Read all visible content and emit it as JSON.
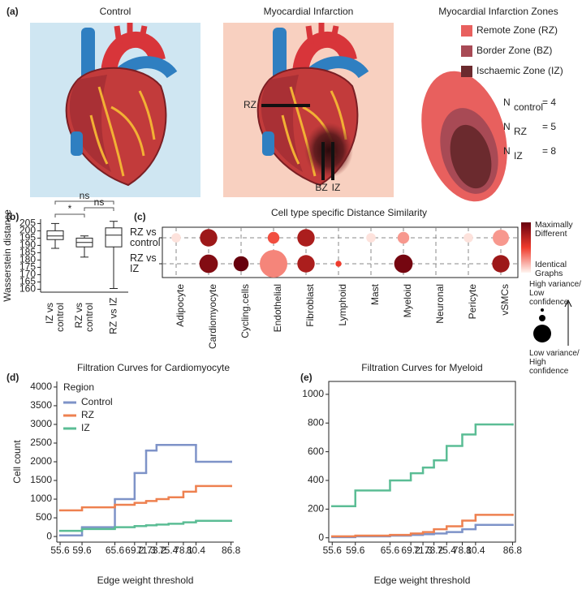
{
  "illustration": {
    "panel": "(a)",
    "control_title": "Control",
    "mi_title": "Myocardial Infarction",
    "mi_labels": [
      "RZ",
      "BZ",
      "IZ"
    ],
    "zones_title": "Myocardial Infarction Zones",
    "zones": [
      {
        "name": "Remote Zone (RZ)",
        "color": "#e8605e"
      },
      {
        "name": "Border Zone (BZ)",
        "color": "#a84a55"
      },
      {
        "name": "Ischaemic Zone (IZ)",
        "color": "#6b2a2e"
      }
    ],
    "counts": [
      {
        "symbol": "N",
        "subscript": "control",
        "text": "= 4"
      },
      {
        "symbol": "N",
        "subscript": "RZ",
        "text": "= 5"
      },
      {
        "symbol": "N",
        "subscript": "IZ",
        "text": "= 8"
      }
    ]
  },
  "chart_data": [
    {
      "type": "box",
      "panel": "(b)",
      "ylabel": "Wasserstein distance",
      "categories": [
        "IZ vs control",
        "RZ vs control",
        "RZ vs IZ"
      ],
      "boxes": [
        {
          "whisker_low": 188,
          "q1": 194,
          "median": 196.5,
          "q3": 200,
          "whisker_high": 205
        },
        {
          "whisker_low": 182,
          "q1": 189,
          "median": 192,
          "q3": 195,
          "whisker_high": 196.5
        },
        {
          "whisker_low": 160.5,
          "q1": 189,
          "median": 197,
          "q3": 202,
          "whisker_high": 206.5
        }
      ],
      "significance": [
        "ns",
        "*",
        "ns"
      ],
      "ylim": [
        158,
        208
      ],
      "yticks": [
        160,
        165,
        170,
        175,
        180,
        185,
        190,
        195,
        200,
        205
      ],
      "color": "#ffffff"
    },
    {
      "type": "bubble",
      "panel": "(c)",
      "title": "Cell type specific Distance Similarity",
      "categories": [
        "Adipocyte",
        "Cardiomyocyte",
        "Cycling.cells",
        "Endothelial",
        "Fibroblast",
        "Lymphoid",
        "Mast",
        "Myeloid",
        "Neuronal",
        "Pericyte",
        "vSMCs"
      ],
      "series": [
        {
          "name": "RZ vs control",
          "values": [
            0.05,
            0.8,
            null,
            0.45,
            0.75,
            null,
            0.05,
            0.25,
            null,
            0.05,
            0.25
          ],
          "sizes": [
            0.2,
            0.55,
            null,
            0.3,
            0.55,
            null,
            0.2,
            0.3,
            null,
            0.2,
            0.5
          ]
        },
        {
          "name": "RZ vs IZ",
          "values": [
            null,
            0.9,
            1.0,
            0.3,
            0.75,
            0.5,
            null,
            0.95,
            null,
            null,
            0.8
          ],
          "sizes": [
            null,
            0.6,
            0.45,
            1.0,
            0.55,
            0.05,
            null,
            0.6,
            null,
            null,
            0.55
          ]
        }
      ],
      "colorscale": [
        "#fff5f0",
        "#ef3b2c",
        "#67000d"
      ],
      "color_legend": [
        "Maximally Different",
        "Identical Graphs"
      ],
      "size_legend": [
        "High variance/ Low confidence",
        "Low variance/ High confidence"
      ]
    },
    {
      "type": "step",
      "panel": "(d)",
      "title": "Filtration Curves for Cardiomyocyte",
      "xlabel": "Edge weight threshold",
      "ylabel": "Cell count",
      "legend_title": "Region",
      "legend": "upper left",
      "x": [
        55.6,
        59.6,
        65.6,
        69.2,
        71.3,
        73.2,
        75.4,
        78.1,
        80.4,
        86.8
      ],
      "series": [
        {
          "name": "Control",
          "color": "#7e93c8",
          "values": [
            30,
            250,
            1000,
            1700,
            2300,
            2450,
            2450,
            2450,
            2000,
            2000
          ]
        },
        {
          "name": "RZ",
          "color": "#ee8150",
          "values": [
            700,
            780,
            850,
            900,
            950,
            1000,
            1050,
            1200,
            1350,
            1350
          ]
        },
        {
          "name": "IZ",
          "color": "#5bbd95",
          "values": [
            150,
            200,
            250,
            280,
            300,
            320,
            340,
            380,
            420,
            420
          ]
        }
      ],
      "xlim": [
        55,
        87.3
      ],
      "ylim": [
        -150,
        4150
      ],
      "xticks": [
        55.6,
        59.6,
        65.6,
        69.2,
        71.3,
        73.2,
        75.4,
        78.1,
        80.4,
        86.8
      ],
      "yticks": [
        0,
        500,
        1000,
        1500,
        2000,
        2500,
        3000,
        3500,
        4000
      ],
      "frame": false
    },
    {
      "type": "step",
      "panel": "(e)",
      "title": "Filtration Curves for Myeloid",
      "xlabel": "Edge weight threshold",
      "x": [
        55.6,
        59.6,
        65.6,
        69.2,
        71.3,
        73.2,
        75.4,
        78.1,
        80.4,
        86.8
      ],
      "series": [
        {
          "name": "Control",
          "color": "#7e93c8",
          "values": [
            5,
            10,
            15,
            20,
            25,
            30,
            40,
            60,
            90,
            90
          ]
        },
        {
          "name": "RZ",
          "color": "#ee8150",
          "values": [
            10,
            15,
            20,
            30,
            40,
            60,
            80,
            120,
            160,
            160
          ]
        },
        {
          "name": "IZ",
          "color": "#5bbd95",
          "values": [
            220,
            330,
            400,
            450,
            490,
            540,
            640,
            720,
            790,
            790
          ]
        }
      ],
      "xlim": [
        55,
        87.3
      ],
      "ylim": [
        -30,
        1090
      ],
      "xticks": [
        55.6,
        59.6,
        65.6,
        69.2,
        71.3,
        73.2,
        75.4,
        78.1,
        80.4,
        86.8
      ],
      "yticks": [
        0,
        200,
        400,
        600,
        800,
        1000
      ],
      "frame": true
    }
  ]
}
